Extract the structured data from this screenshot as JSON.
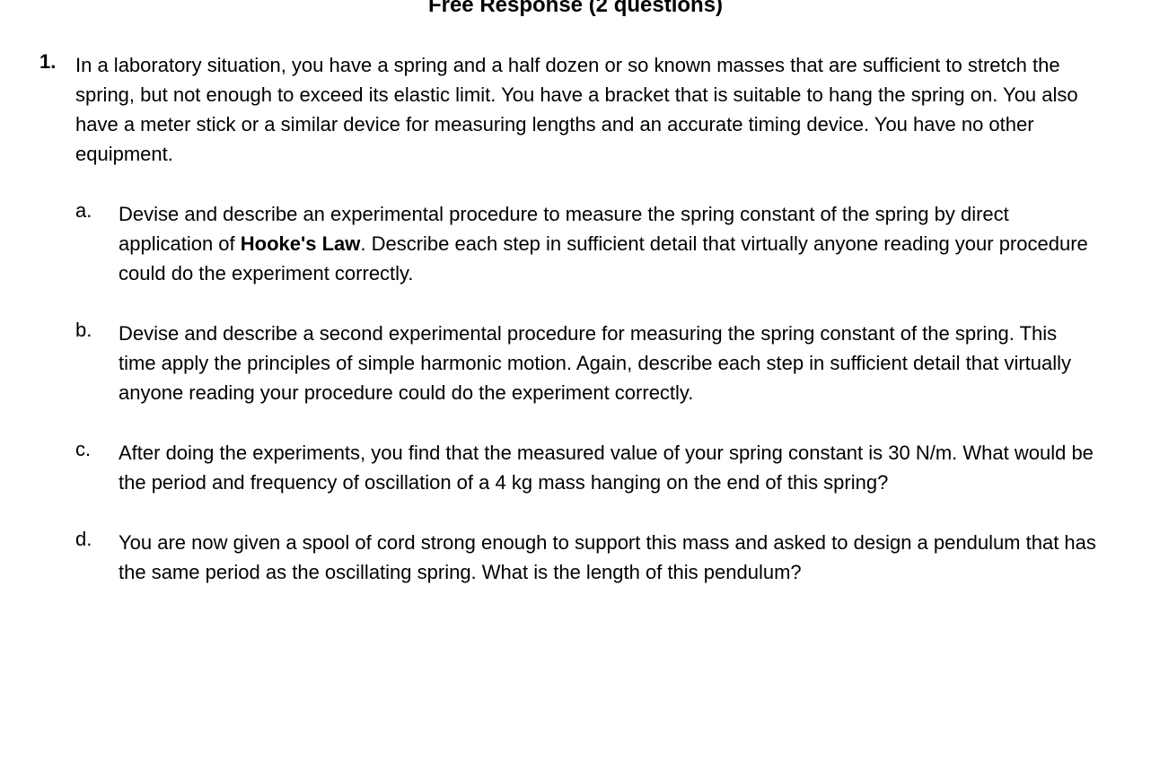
{
  "header": {
    "title": "Free Response (2 questions)"
  },
  "question": {
    "number": "1.",
    "intro": "In a laboratory situation, you have a spring and a half dozen or so known masses that are sufficient to stretch the spring, but not enough to exceed its elastic limit. You have a bracket that is suitable to hang the spring on. You also have a meter stick or a similar device for measuring lengths and an accurate timing device. You have no other equipment.",
    "subitems": [
      {
        "letter": "a.",
        "text_before": "Devise and describe an experimental procedure to measure the spring constant of the spring by direct application of ",
        "bold": "Hooke's Law",
        "text_after": ". Describe each step in sufficient detail that virtually anyone reading your procedure could do the experiment correctly."
      },
      {
        "letter": "b.",
        "text_before": "Devise and describe a second experimental procedure for measuring the spring constant of the spring.  This time apply the principles of simple harmonic motion. Again, describe each step in sufficient detail that virtually anyone reading your procedure could do the experiment correctly.",
        "bold": "",
        "text_after": ""
      },
      {
        "letter": "c.",
        "text_before": "After doing the experiments, you find that the measured value of your spring constant is 30 N/m. What would be the period and frequency of oscillation of a 4 kg mass hanging on the end of this spring?",
        "bold": "",
        "text_after": ""
      },
      {
        "letter": "d.",
        "text_before": "You are now given a spool of cord strong enough to support this mass and asked to design a pendulum that has the same period as the oscillating spring. What is the length of this pendulum?",
        "bold": "",
        "text_after": ""
      }
    ]
  },
  "styles": {
    "background_color": "#ffffff",
    "text_color": "#000000",
    "header_fontsize": 24,
    "body_fontsize": 22,
    "line_height": 1.5,
    "font_family": "Lucida Sans Unicode"
  }
}
